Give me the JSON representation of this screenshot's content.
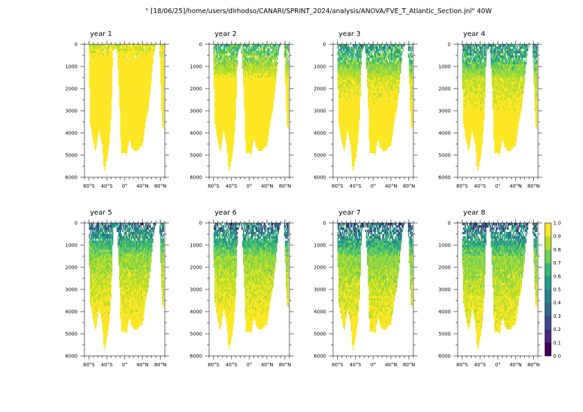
{
  "header": {
    "title": "\" [18/06/25]/home/users/dlrhodso/CANARI/SPRINT_2024/analysis/ANOVA/FVE_T_Atlantic_Section.jnl\" 40W"
  },
  "chart_data": {
    "type": "heatmap",
    "panels": [
      {
        "title": "year  1",
        "mean_level": 0.95
      },
      {
        "title": "year  2",
        "mean_level": 0.85
      },
      {
        "title": "year  3",
        "mean_level": 0.8
      },
      {
        "title": "year  4",
        "mean_level": 0.78
      },
      {
        "title": "year  5",
        "mean_level": 0.72
      },
      {
        "title": "year  6",
        "mean_level": 0.72
      },
      {
        "title": "year  7",
        "mean_level": 0.7
      },
      {
        "title": "year  8",
        "mean_level": 0.7
      }
    ],
    "x_ticks": [
      "80°S",
      "40°S",
      "0°",
      "40°N",
      "80°N"
    ],
    "x_tick_values": [
      -80,
      -40,
      0,
      40,
      80
    ],
    "xlim": [
      -90,
      90
    ],
    "y_ticks": [
      "0",
      "1000",
      "2000",
      "3000",
      "4000",
      "5000",
      "6000"
    ],
    "y_tick_values": [
      0,
      1000,
      2000,
      3000,
      4000,
      5000,
      6000
    ],
    "ylim": [
      6000,
      0
    ],
    "colorbar": {
      "labels": [
        "0.0",
        "0.1",
        "0.2",
        "0.3",
        "0.4",
        "0.5",
        "0.6",
        "0.7",
        "0.8",
        "0.9",
        "1.0"
      ],
      "levels": [
        0.0,
        0.1,
        0.2,
        0.3,
        0.4,
        0.5,
        0.6,
        0.7,
        0.8,
        0.9,
        1.0
      ],
      "colors": [
        "#440154",
        "#482878",
        "#3e4989",
        "#31688e",
        "#26828e",
        "#1f9e89",
        "#35b779",
        "#6ece58",
        "#b5de2b",
        "#fde725"
      ]
    },
    "bathymetry_depth": [
      {
        "lat": -80,
        "depth": 600
      },
      {
        "lat": -78,
        "depth": 3400
      },
      {
        "lat": -72,
        "depth": 4200
      },
      {
        "lat": -65,
        "depth": 4800
      },
      {
        "lat": -58,
        "depth": 3800
      },
      {
        "lat": -50,
        "depth": 4600
      },
      {
        "lat": -46,
        "depth": 5800
      },
      {
        "lat": -40,
        "depth": 5200
      },
      {
        "lat": -34,
        "depth": 4300
      },
      {
        "lat": -30,
        "depth": 3000
      },
      {
        "lat": -26,
        "depth": 300
      },
      {
        "lat": -18,
        "depth": 0
      },
      {
        "lat": -12,
        "depth": 2200
      },
      {
        "lat": -8,
        "depth": 4900
      },
      {
        "lat": -2,
        "depth": 4800
      },
      {
        "lat": 4,
        "depth": 5000
      },
      {
        "lat": 10,
        "depth": 4200
      },
      {
        "lat": 16,
        "depth": 4600
      },
      {
        "lat": 22,
        "depth": 4800
      },
      {
        "lat": 28,
        "depth": 4800
      },
      {
        "lat": 34,
        "depth": 4600
      },
      {
        "lat": 40,
        "depth": 4500
      },
      {
        "lat": 46,
        "depth": 3600
      },
      {
        "lat": 52,
        "depth": 3000
      },
      {
        "lat": 58,
        "depth": 2000
      },
      {
        "lat": 64,
        "depth": 600
      },
      {
        "lat": 70,
        "depth": 0
      },
      {
        "lat": 78,
        "depth": 0
      },
      {
        "lat": 84,
        "depth": 3600
      },
      {
        "lat": 88,
        "depth": 3800
      }
    ]
  }
}
